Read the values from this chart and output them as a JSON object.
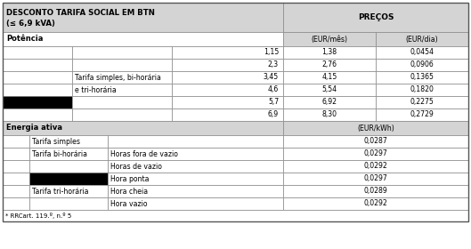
{
  "title_left": "DESCONTO TARIFA SOCIAL EM BTN\n(≤ 6,9 kVA)",
  "title_right": "PREÇOS",
  "header_bg": "#d4d4d4",
  "black_cell_bg": "#000000",
  "white_bg": "#ffffff",
  "border_color": "#888888",
  "potencia_rows": [
    {
      "col1": "",
      "col2": "",
      "col3": "1,15",
      "col4": "1,38",
      "col5": "0,0454"
    },
    {
      "col1": "",
      "col2": "",
      "col3": "2,3",
      "col4": "2,76",
      "col5": "0,0906"
    },
    {
      "col1": "",
      "col2": "Tarifa simples, bi-horária",
      "col3": "3,45",
      "col4": "4,15",
      "col5": "0,1365"
    },
    {
      "col1": "",
      "col2": "e tri-horária",
      "col3": "4,6",
      "col4": "5,54",
      "col5": "0,1820"
    },
    {
      "col1": "BLACK",
      "col2": "",
      "col3": "5,7",
      "col4": "6,92",
      "col5": "0,2275"
    },
    {
      "col1": "",
      "col2": "",
      "col3": "6,9",
      "col4": "8,30",
      "col5": "0,2729"
    }
  ],
  "energia_rows": [
    {
      "label1": "Tarifa simples",
      "label2": "",
      "value": "0,0287"
    },
    {
      "label1": "Tarifa bi-horária",
      "label2": "Horas fora de vazio",
      "value": "0,0297"
    },
    {
      "label1": "",
      "label2": "Horas de vazio",
      "value": "0,0292"
    },
    {
      "label1": "BLACK",
      "label2": "Hora ponta",
      "value": "0,0297"
    },
    {
      "label1": "Tarifa tri-horária",
      "label2": "Hora cheia",
      "value": "0,0289"
    },
    {
      "label1": "",
      "label2": "Hora vazio",
      "value": "0,0292"
    }
  ],
  "footnote": "* RRCart. 119.º, n.º 5"
}
